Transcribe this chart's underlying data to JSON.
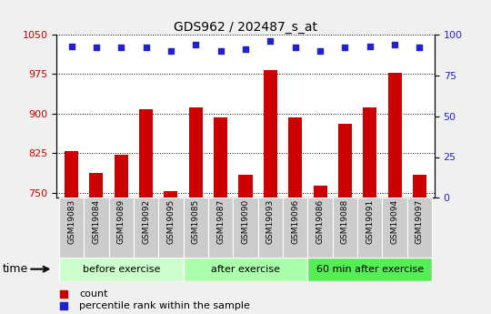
{
  "title": "GDS962 / 202487_s_at",
  "categories": [
    "GSM19083",
    "GSM19084",
    "GSM19089",
    "GSM19092",
    "GSM19095",
    "GSM19085",
    "GSM19087",
    "GSM19090",
    "GSM19093",
    "GSM19096",
    "GSM19086",
    "GSM19088",
    "GSM19091",
    "GSM19094",
    "GSM19097"
  ],
  "bar_values": [
    828,
    787,
    822,
    908,
    753,
    912,
    893,
    784,
    982,
    892,
    763,
    880,
    912,
    978,
    783
  ],
  "percentile_values": [
    93,
    92,
    92,
    92,
    90,
    94,
    90,
    91,
    96,
    92,
    90,
    92,
    93,
    94,
    92
  ],
  "groups": [
    {
      "label": "before exercise",
      "start": 0,
      "end": 5
    },
    {
      "label": "after exercise",
      "start": 5,
      "end": 10
    },
    {
      "label": "60 min after exercise",
      "start": 10,
      "end": 15
    }
  ],
  "ylim_left": [
    740,
    1050
  ],
  "ylim_right": [
    0,
    100
  ],
  "yticks_left": [
    750,
    825,
    900,
    975,
    1050
  ],
  "yticks_right": [
    0,
    25,
    50,
    75,
    100
  ],
  "bar_color": "#CC0000",
  "dot_color": "#2222CC",
  "group_colors": [
    "#ccffcc",
    "#aaffaa",
    "#55ee55"
  ],
  "cell_color": "#cccccc",
  "cell_edge_color": "#ffffff",
  "fig_bg_color": "#f0f0f0",
  "plot_bg_color": "#ffffff",
  "legend_items": [
    "count",
    "percentile rank within the sample"
  ]
}
